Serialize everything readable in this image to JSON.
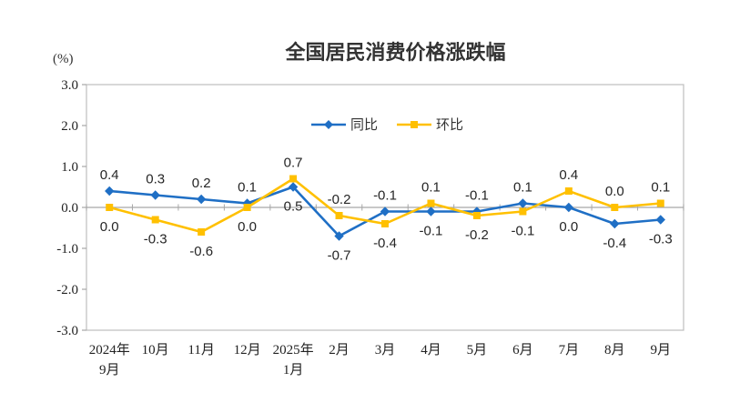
{
  "colors": {
    "series_tongbi": "#1f6fc5",
    "series_huanbi": "#ffc000",
    "axis_line": "#a6a6a6",
    "plot_border": "#bfbfbf",
    "text": "#333333"
  },
  "chart_data": {
    "type": "line",
    "title": "全国居民消费价格涨跌幅",
    "ylabel": "(%)",
    "xlabel": "",
    "ylim": [
      -3.0,
      3.0
    ],
    "ytick_step": 1.0,
    "ytick_labels": [
      "3.0",
      "2.0",
      "1.0",
      "0.0",
      "-1.0",
      "-2.0",
      "-3.0"
    ],
    "grid": false,
    "legend_position": "top-center",
    "categories": [
      [
        "2024年",
        "9月"
      ],
      [
        "10月"
      ],
      [
        "11月"
      ],
      [
        "12月"
      ],
      [
        "2025年",
        "1月"
      ],
      [
        "2月"
      ],
      [
        "3月"
      ],
      [
        "4月"
      ],
      [
        "5月"
      ],
      [
        "6月"
      ],
      [
        "7月"
      ],
      [
        "8月"
      ],
      [
        "9月"
      ]
    ],
    "series": [
      {
        "name": "同比",
        "color": "#1f6fc5",
        "marker": "diamond",
        "values": [
          0.4,
          0.3,
          0.2,
          0.1,
          0.5,
          -0.7,
          -0.1,
          -0.1,
          -0.1,
          0.1,
          0.0,
          -0.4,
          -0.3
        ],
        "label_sides": [
          "above",
          "above",
          "above",
          "above",
          "below",
          "below",
          "above",
          "below",
          "above",
          "above",
          "below",
          "below",
          "below"
        ]
      },
      {
        "name": "环比",
        "color": "#ffc000",
        "marker": "square",
        "values": [
          0.0,
          -0.3,
          -0.6,
          0.0,
          0.7,
          -0.2,
          -0.4,
          0.1,
          -0.2,
          -0.1,
          0.4,
          0.0,
          0.1
        ],
        "label_sides": [
          "below",
          "below",
          "below",
          "below",
          "above",
          "above",
          "below",
          "above",
          "below",
          "below",
          "above",
          "above",
          "above"
        ]
      }
    ]
  }
}
